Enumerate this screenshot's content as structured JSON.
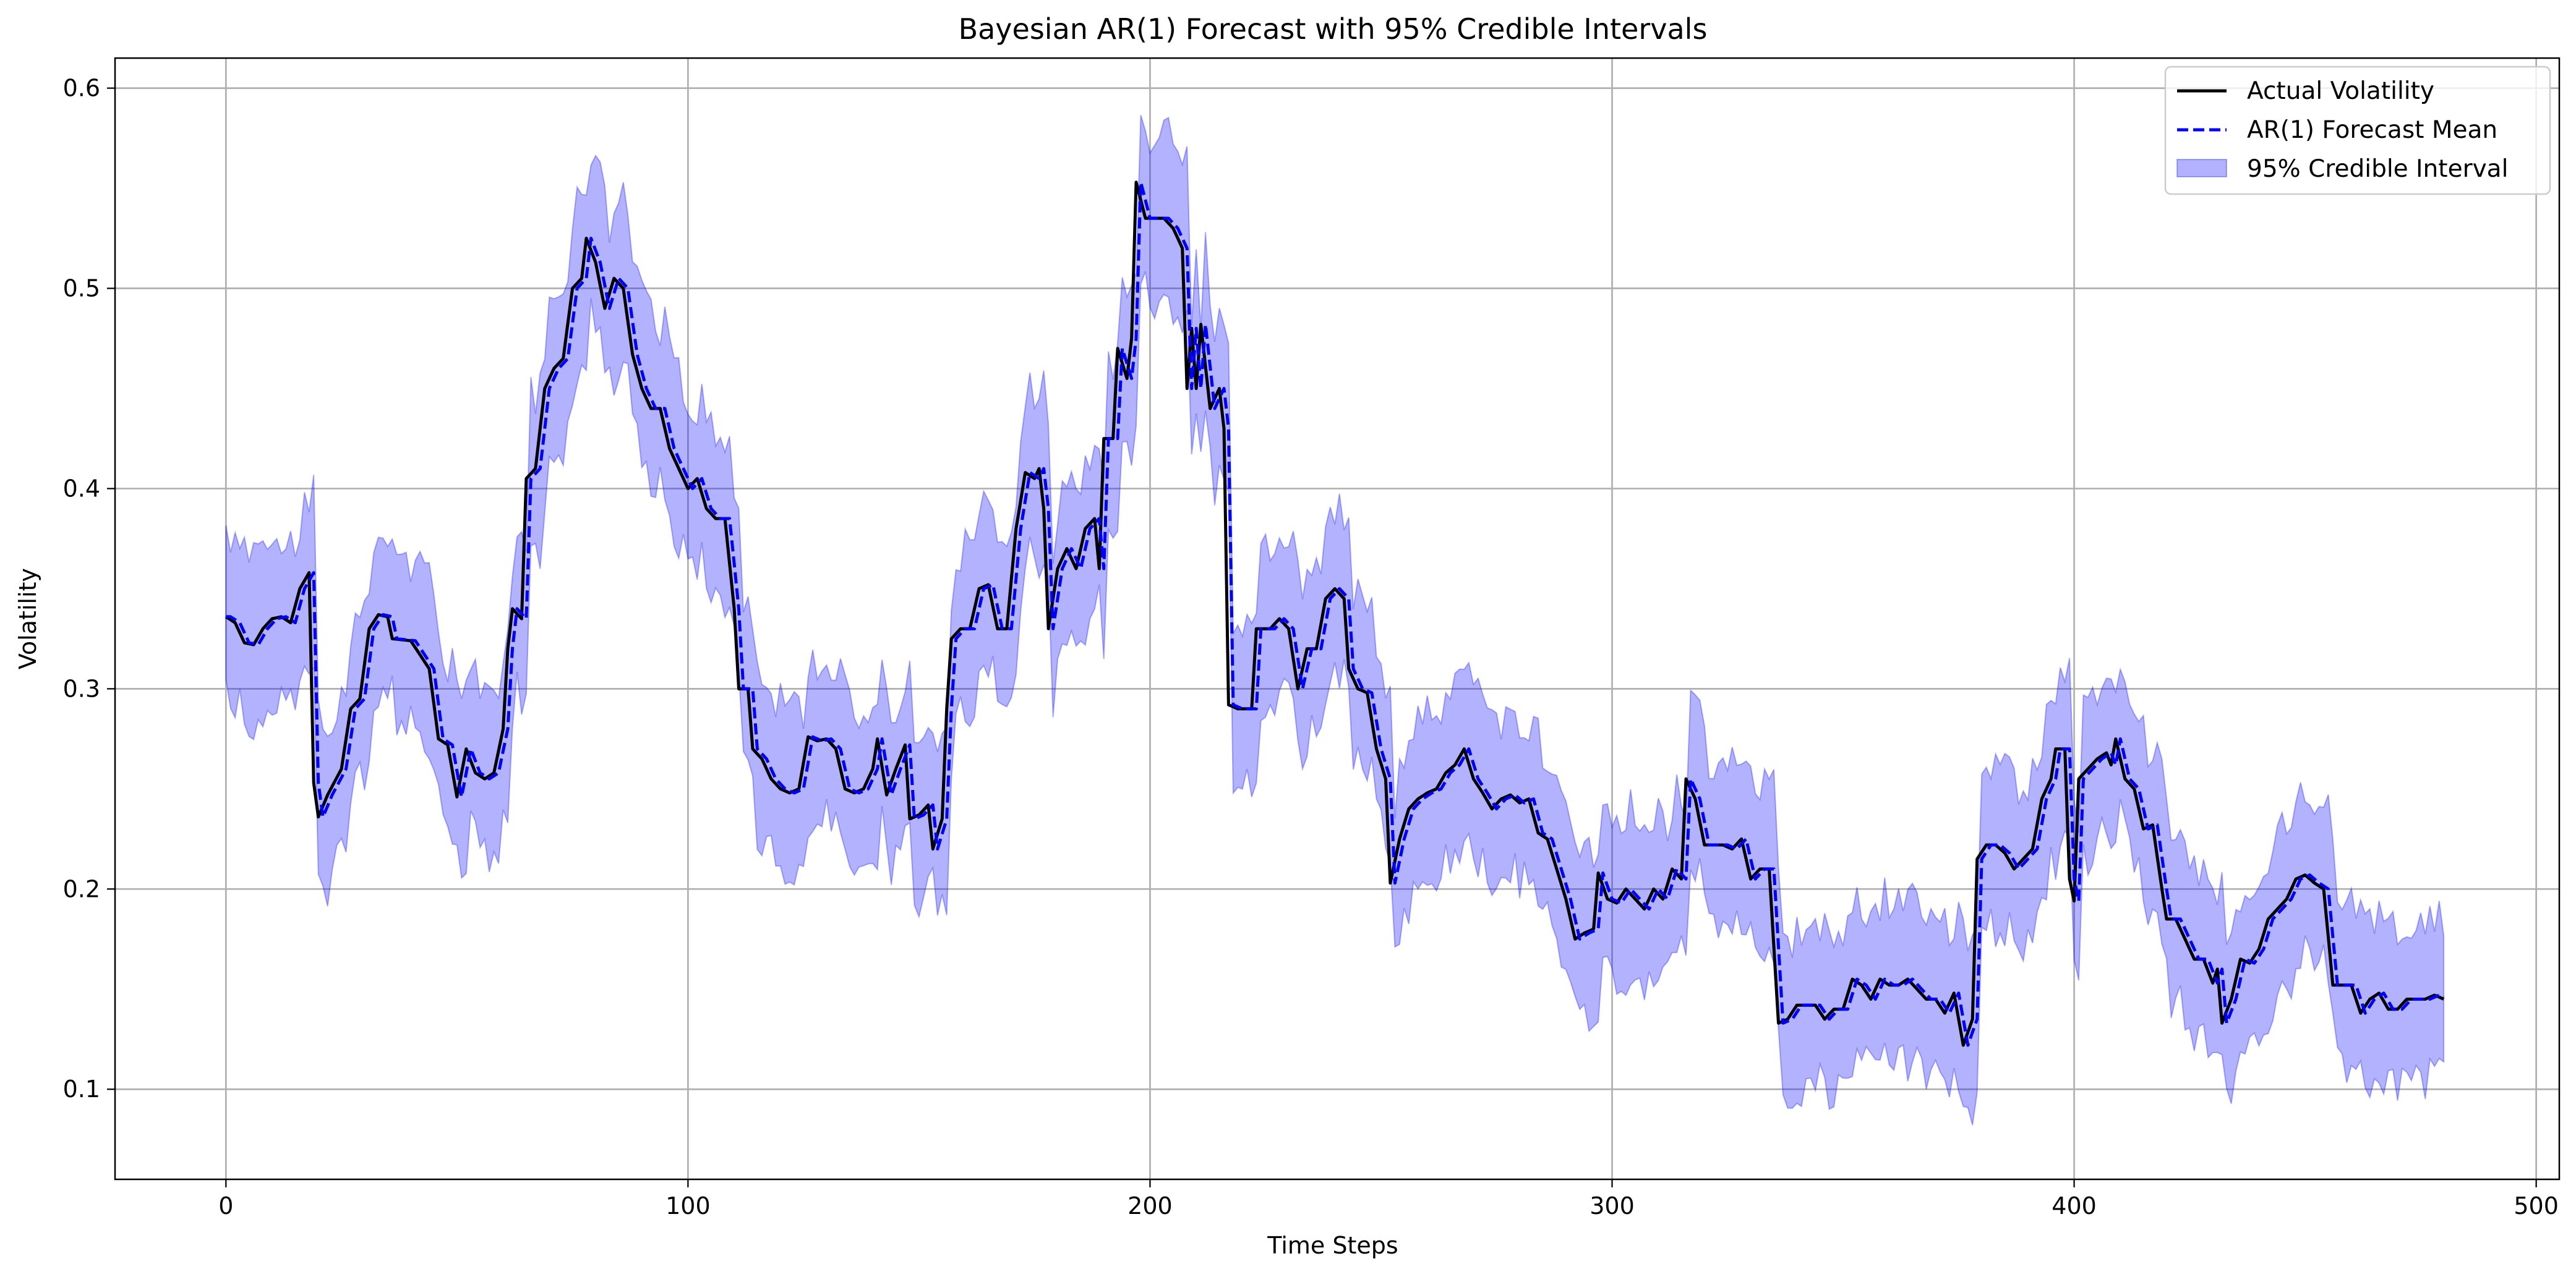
{
  "chart_data": {
    "type": "line",
    "title": "Bayesian AR(1) Forecast with 95% Credible Intervals",
    "xlabel": "Time Steps",
    "ylabel": "Volatility",
    "xlim": [
      -24,
      505
    ],
    "ylim": [
      0.055,
      0.615
    ],
    "xticks": [
      0,
      100,
      200,
      300,
      400,
      500
    ],
    "xtick_labels": [
      "0",
      "100",
      "200",
      "300",
      "400",
      "500"
    ],
    "yticks": [
      0.1,
      0.2,
      0.3,
      0.4,
      0.5,
      0.6
    ],
    "ytick_labels": [
      "0.1",
      "0.2",
      "0.3",
      "0.4",
      "0.5",
      "0.6"
    ],
    "grid": true,
    "legend_position": "top-right",
    "interval_half_width": 0.04,
    "series": [
      {
        "name": "Actual Volatility",
        "role": "actual",
        "color": "#000000",
        "style": "solid",
        "keypoints": [
          [
            0,
            0.336
          ],
          [
            2,
            0.333
          ],
          [
            4,
            0.323
          ],
          [
            6,
            0.322
          ],
          [
            8,
            0.33
          ],
          [
            10,
            0.335
          ],
          [
            12,
            0.336
          ],
          [
            14,
            0.333
          ],
          [
            16,
            0.35
          ],
          [
            18,
            0.358
          ],
          [
            19,
            0.253
          ],
          [
            20,
            0.236
          ],
          [
            22,
            0.247
          ],
          [
            25,
            0.26
          ],
          [
            27,
            0.29
          ],
          [
            29,
            0.295
          ],
          [
            31,
            0.33
          ],
          [
            33,
            0.337
          ],
          [
            35,
            0.336
          ],
          [
            36,
            0.325
          ],
          [
            40,
            0.324
          ],
          [
            44,
            0.31
          ],
          [
            46,
            0.275
          ],
          [
            48,
            0.272
          ],
          [
            50,
            0.246
          ],
          [
            52,
            0.27
          ],
          [
            54,
            0.258
          ],
          [
            56,
            0.255
          ],
          [
            58,
            0.258
          ],
          [
            60,
            0.28
          ],
          [
            61,
            0.32
          ],
          [
            62,
            0.34
          ],
          [
            64,
            0.335
          ],
          [
            65,
            0.405
          ],
          [
            67,
            0.41
          ],
          [
            69,
            0.45
          ],
          [
            71,
            0.46
          ],
          [
            73,
            0.465
          ],
          [
            75,
            0.5
          ],
          [
            77,
            0.505
          ],
          [
            78,
            0.525
          ],
          [
            80,
            0.513
          ],
          [
            82,
            0.49
          ],
          [
            84,
            0.505
          ],
          [
            86,
            0.5
          ],
          [
            88,
            0.467
          ],
          [
            90,
            0.45
          ],
          [
            92,
            0.44
          ],
          [
            94,
            0.44
          ],
          [
            96,
            0.42
          ],
          [
            98,
            0.41
          ],
          [
            100,
            0.4
          ],
          [
            102,
            0.405
          ],
          [
            104,
            0.39
          ],
          [
            106,
            0.385
          ],
          [
            108,
            0.385
          ],
          [
            110,
            0.34
          ],
          [
            111,
            0.3
          ],
          [
            113,
            0.3
          ],
          [
            114,
            0.27
          ],
          [
            116,
            0.265
          ],
          [
            118,
            0.255
          ],
          [
            120,
            0.25
          ],
          [
            122,
            0.248
          ],
          [
            124,
            0.25
          ],
          [
            126,
            0.276
          ],
          [
            128,
            0.274
          ],
          [
            130,
            0.275
          ],
          [
            132,
            0.27
          ],
          [
            134,
            0.25
          ],
          [
            136,
            0.248
          ],
          [
            138,
            0.25
          ],
          [
            140,
            0.26
          ],
          [
            141,
            0.275
          ],
          [
            143,
            0.247
          ],
          [
            145,
            0.26
          ],
          [
            147,
            0.272
          ],
          [
            148,
            0.235
          ],
          [
            150,
            0.237
          ],
          [
            152,
            0.242
          ],
          [
            153,
            0.22
          ],
          [
            155,
            0.235
          ],
          [
            156,
            0.29
          ],
          [
            157,
            0.325
          ],
          [
            159,
            0.33
          ],
          [
            161,
            0.33
          ],
          [
            163,
            0.35
          ],
          [
            165,
            0.352
          ],
          [
            167,
            0.33
          ],
          [
            169,
            0.33
          ],
          [
            171,
            0.38
          ],
          [
            173,
            0.408
          ],
          [
            175,
            0.405
          ],
          [
            176,
            0.41
          ],
          [
            177,
            0.39
          ],
          [
            178,
            0.33
          ],
          [
            180,
            0.36
          ],
          [
            182,
            0.37
          ],
          [
            184,
            0.36
          ],
          [
            186,
            0.38
          ],
          [
            188,
            0.385
          ],
          [
            189,
            0.36
          ],
          [
            190,
            0.425
          ],
          [
            192,
            0.425
          ],
          [
            193,
            0.47
          ],
          [
            195,
            0.455
          ],
          [
            196,
            0.475
          ],
          [
            197,
            0.553
          ],
          [
            199,
            0.535
          ],
          [
            201,
            0.535
          ],
          [
            203,
            0.535
          ],
          [
            205,
            0.53
          ],
          [
            207,
            0.52
          ],
          [
            208,
            0.45
          ],
          [
            209,
            0.48
          ],
          [
            210,
            0.45
          ],
          [
            211,
            0.482
          ],
          [
            213,
            0.44
          ],
          [
            215,
            0.45
          ],
          [
            216,
            0.43
          ],
          [
            217,
            0.292
          ],
          [
            219,
            0.29
          ],
          [
            222,
            0.29
          ],
          [
            223,
            0.33
          ],
          [
            226,
            0.33
          ],
          [
            228,
            0.335
          ],
          [
            230,
            0.33
          ],
          [
            232,
            0.3
          ],
          [
            234,
            0.32
          ],
          [
            236,
            0.32
          ],
          [
            238,
            0.345
          ],
          [
            240,
            0.35
          ],
          [
            242,
            0.345
          ],
          [
            243,
            0.31
          ],
          [
            245,
            0.3
          ],
          [
            247,
            0.298
          ],
          [
            249,
            0.27
          ],
          [
            251,
            0.255
          ],
          [
            252,
            0.203
          ],
          [
            254,
            0.225
          ],
          [
            256,
            0.24
          ],
          [
            258,
            0.245
          ],
          [
            260,
            0.248
          ],
          [
            262,
            0.25
          ],
          [
            264,
            0.258
          ],
          [
            266,
            0.262
          ],
          [
            268,
            0.27
          ],
          [
            270,
            0.255
          ],
          [
            272,
            0.248
          ],
          [
            274,
            0.24
          ],
          [
            276,
            0.245
          ],
          [
            278,
            0.247
          ],
          [
            280,
            0.243
          ],
          [
            282,
            0.245
          ],
          [
            284,
            0.228
          ],
          [
            286,
            0.225
          ],
          [
            288,
            0.21
          ],
          [
            290,
            0.195
          ],
          [
            292,
            0.175
          ],
          [
            294,
            0.178
          ],
          [
            296,
            0.18
          ],
          [
            297,
            0.208
          ],
          [
            299,
            0.195
          ],
          [
            301,
            0.193
          ],
          [
            303,
            0.2
          ],
          [
            305,
            0.195
          ],
          [
            307,
            0.19
          ],
          [
            309,
            0.2
          ],
          [
            311,
            0.195
          ],
          [
            313,
            0.21
          ],
          [
            315,
            0.205
          ],
          [
            316,
            0.255
          ],
          [
            318,
            0.245
          ],
          [
            320,
            0.222
          ],
          [
            322,
            0.222
          ],
          [
            324,
            0.222
          ],
          [
            326,
            0.22
          ],
          [
            328,
            0.225
          ],
          [
            330,
            0.205
          ],
          [
            332,
            0.21
          ],
          [
            334,
            0.21
          ],
          [
            336,
            0.133
          ],
          [
            338,
            0.135
          ],
          [
            340,
            0.142
          ],
          [
            342,
            0.142
          ],
          [
            344,
            0.142
          ],
          [
            346,
            0.135
          ],
          [
            348,
            0.14
          ],
          [
            350,
            0.14
          ],
          [
            352,
            0.155
          ],
          [
            354,
            0.152
          ],
          [
            356,
            0.145
          ],
          [
            358,
            0.155
          ],
          [
            360,
            0.152
          ],
          [
            362,
            0.152
          ],
          [
            364,
            0.155
          ],
          [
            366,
            0.15
          ],
          [
            368,
            0.145
          ],
          [
            370,
            0.145
          ],
          [
            372,
            0.138
          ],
          [
            374,
            0.148
          ],
          [
            376,
            0.122
          ],
          [
            378,
            0.135
          ],
          [
            379,
            0.215
          ],
          [
            381,
            0.222
          ],
          [
            383,
            0.222
          ],
          [
            385,
            0.218
          ],
          [
            387,
            0.21
          ],
          [
            389,
            0.215
          ],
          [
            391,
            0.22
          ],
          [
            393,
            0.245
          ],
          [
            395,
            0.255
          ],
          [
            396,
            0.27
          ],
          [
            398,
            0.27
          ],
          [
            399,
            0.205
          ],
          [
            400,
            0.194
          ],
          [
            401,
            0.255
          ],
          [
            403,
            0.26
          ],
          [
            405,
            0.265
          ],
          [
            407,
            0.268
          ],
          [
            408,
            0.262
          ],
          [
            409,
            0.275
          ],
          [
            411,
            0.255
          ],
          [
            413,
            0.25
          ],
          [
            415,
            0.23
          ],
          [
            417,
            0.232
          ],
          [
            419,
            0.2
          ],
          [
            420,
            0.185
          ],
          [
            422,
            0.185
          ],
          [
            424,
            0.175
          ],
          [
            426,
            0.165
          ],
          [
            428,
            0.165
          ],
          [
            430,
            0.153
          ],
          [
            431,
            0.16
          ],
          [
            432,
            0.133
          ],
          [
            434,
            0.145
          ],
          [
            436,
            0.165
          ],
          [
            438,
            0.163
          ],
          [
            440,
            0.17
          ],
          [
            442,
            0.185
          ],
          [
            444,
            0.19
          ],
          [
            446,
            0.195
          ],
          [
            448,
            0.205
          ],
          [
            450,
            0.207
          ],
          [
            452,
            0.203
          ],
          [
            454,
            0.2
          ],
          [
            456,
            0.152
          ],
          [
            458,
            0.152
          ],
          [
            460,
            0.152
          ],
          [
            462,
            0.138
          ],
          [
            464,
            0.145
          ],
          [
            466,
            0.148
          ],
          [
            468,
            0.14
          ],
          [
            470,
            0.14
          ],
          [
            472,
            0.145
          ],
          [
            474,
            0.145
          ],
          [
            476,
            0.145
          ],
          [
            478,
            0.147
          ],
          [
            480,
            0.145
          ]
        ]
      },
      {
        "name": "AR(1) Forecast Mean",
        "role": "forecast",
        "color": "#0000ff",
        "style": "dashed",
        "lag": 1
      },
      {
        "name": "95% Credible Interval",
        "role": "interval",
        "color": "#0000ff",
        "fill_opacity": 0.3
      }
    ]
  }
}
